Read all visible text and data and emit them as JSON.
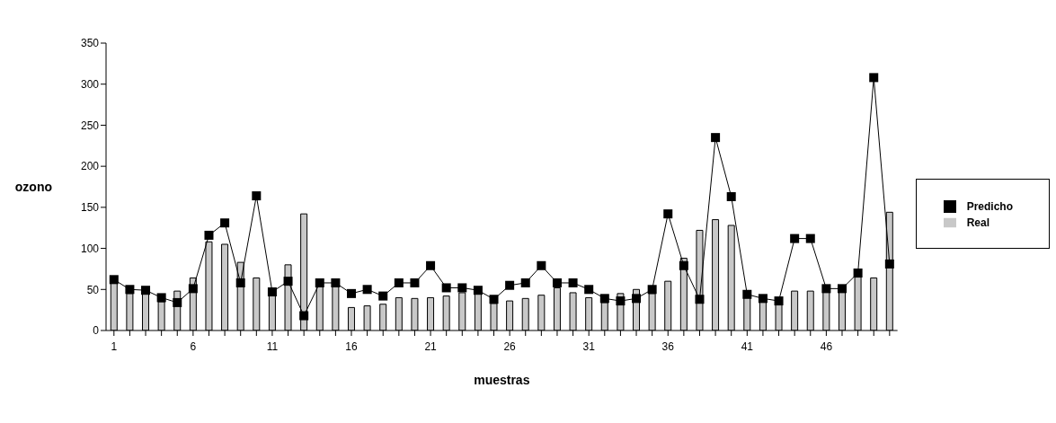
{
  "chart_data": {
    "type": "bar",
    "xlabel": "muestras",
    "ylabel": "ozono",
    "categories": [
      "1",
      null,
      null,
      null,
      null,
      "6",
      null,
      null,
      null,
      null,
      "11",
      null,
      null,
      null,
      null,
      "16",
      null,
      null,
      null,
      null,
      "21",
      null,
      null,
      null,
      null,
      "26",
      null,
      null,
      null,
      null,
      "31",
      null,
      null,
      null,
      null,
      "36",
      null,
      null,
      null,
      null,
      "41",
      null,
      null,
      null,
      null,
      "46",
      null,
      null,
      null,
      null
    ],
    "series": [
      {
        "name": "Real",
        "color": "#c8c8c8",
        "values": [
          58,
          45,
          45,
          35,
          48,
          64,
          108,
          105,
          83,
          64,
          45,
          80,
          142,
          55,
          55,
          28,
          30,
          32,
          40,
          39,
          40,
          42,
          46,
          45,
          33,
          36,
          39,
          43,
          52,
          46,
          40,
          34,
          45,
          50,
          45,
          60,
          88,
          122,
          135,
          128,
          40,
          35,
          33,
          48,
          48,
          48,
          48,
          65,
          64,
          144
        ]
      },
      {
        "name": "Predicho",
        "type": "line",
        "color": "#000000",
        "values": [
          62,
          50,
          49,
          40,
          34,
          51,
          116,
          131,
          58,
          164,
          47,
          60,
          18,
          58,
          58,
          45,
          50,
          42,
          58,
          58,
          79,
          52,
          52,
          49,
          38,
          55,
          58,
          79,
          58,
          58,
          50,
          39,
          36,
          39,
          50,
          142,
          79,
          38,
          235,
          163,
          44,
          39,
          36,
          112,
          112,
          51,
          51,
          70,
          308,
          81
        ]
      }
    ],
    "ylim": [
      0,
      350
    ],
    "yticks": [
      0,
      50,
      100,
      150,
      200,
      250,
      300,
      350
    ],
    "grid": false,
    "legend": "right",
    "marker": "square",
    "line_style": "solid"
  }
}
